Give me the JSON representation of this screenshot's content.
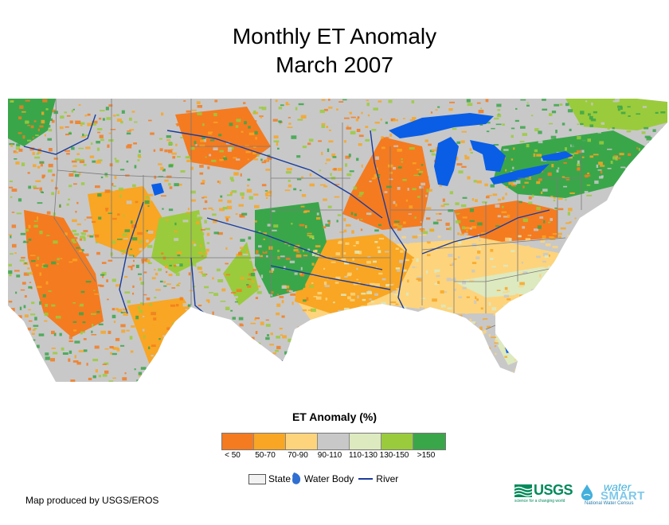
{
  "title": {
    "line1": "Monthly ET Anomaly",
    "line2": "March 2007"
  },
  "legend": {
    "title": "ET Anomaly (%)",
    "classes": [
      {
        "label": "< 50",
        "color": "#f47b20"
      },
      {
        "label": "50-70",
        "color": "#f8a623"
      },
      {
        "label": "70-90",
        "color": "#fdd47c"
      },
      {
        "label": "90-110",
        "color": "#c8c8c8"
      },
      {
        "label": "110-130",
        "color": "#dde9bf"
      },
      {
        "label": "130-150",
        "color": "#9acb3c"
      },
      {
        "label": ">150",
        "color": "#3aa64a"
      }
    ],
    "key": {
      "state": "State",
      "water": "Water Body",
      "river": "River"
    }
  },
  "colors": {
    "water": "#0a5ee6",
    "river": "#1a3c9c",
    "state_line": "#7a7a7a"
  },
  "credit": "Map produced by USGS/EROS",
  "logos": {
    "usgs": "USGS",
    "usgs_tagline": "science for a changing world",
    "watersmart_word1": "water",
    "watersmart_word2": "SMART",
    "watersmart_sub": "National Water Census"
  }
}
